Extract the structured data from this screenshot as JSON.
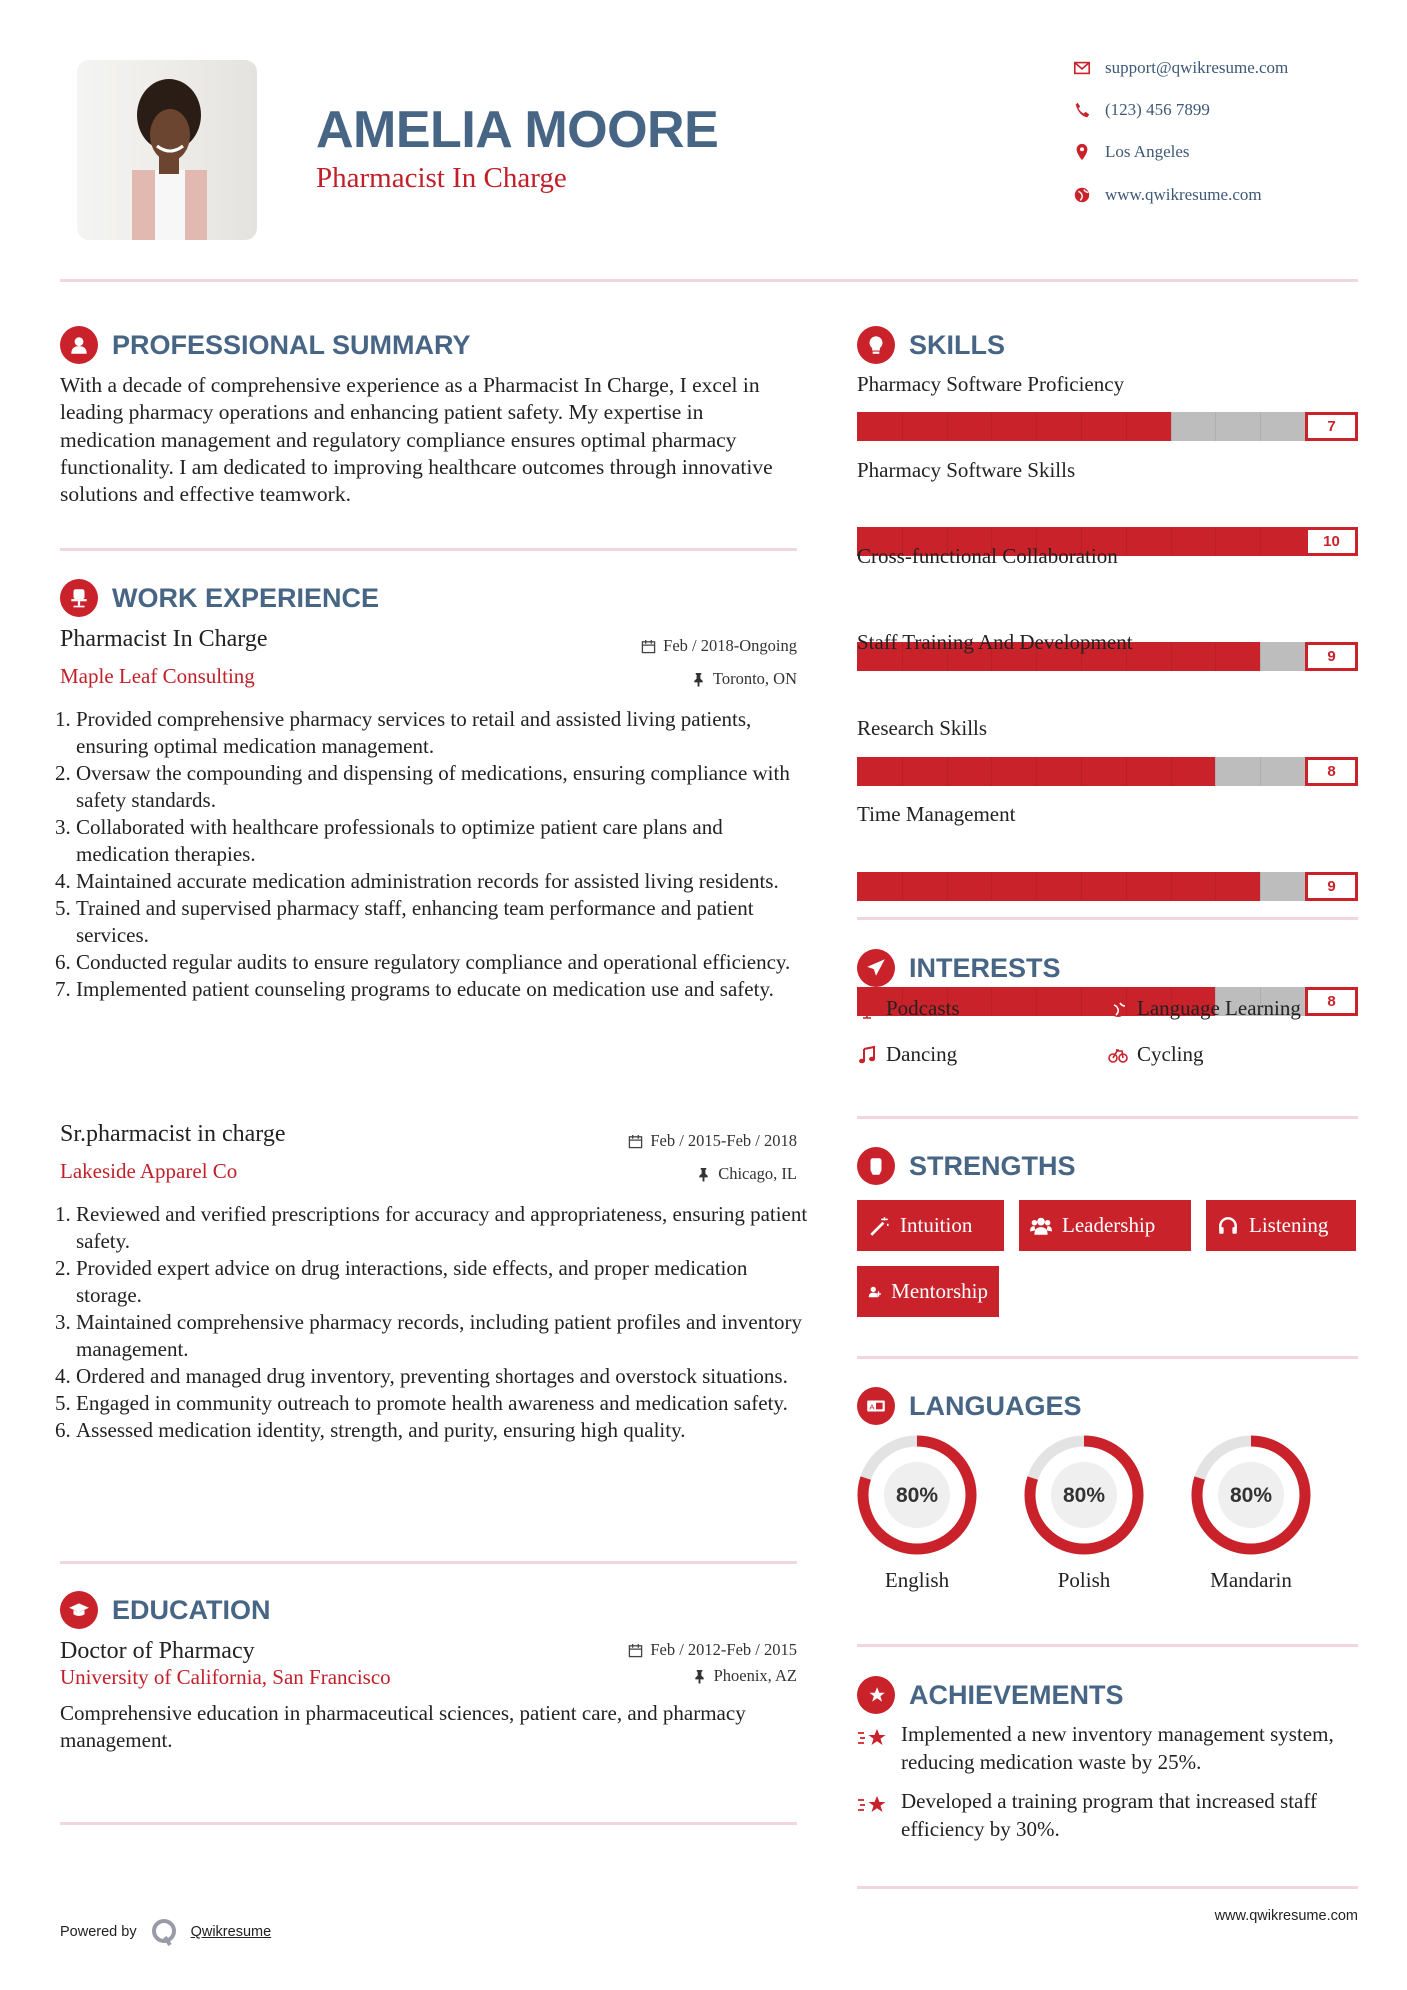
{
  "header": {
    "name": "AMELIA MOORE",
    "title": "Pharmacist In Charge",
    "contacts": [
      {
        "icon": "envelope-icon",
        "text": "support@qwikresume.com"
      },
      {
        "icon": "phone-icon",
        "text": "(123) 456 7899"
      },
      {
        "icon": "map-pin-icon",
        "text": "Los Angeles"
      },
      {
        "icon": "globe-icon",
        "text": "www.qwikresume.com"
      }
    ]
  },
  "colors": {
    "accent": "#c9222b",
    "heading": "#476584",
    "divider": "#f1d6de",
    "track": "#bdbdbd"
  },
  "summary": {
    "heading": "PROFESSIONAL SUMMARY",
    "text": "With a decade of comprehensive experience as a Pharmacist In Charge, I excel in leading pharmacy operations and enhancing patient safety. My expertise in medication management and regulatory compliance ensures optimal pharmacy functionality. I am dedicated to improving healthcare outcomes through innovative solutions and effective teamwork."
  },
  "experience": {
    "heading": "WORK EXPERIENCE",
    "jobs": [
      {
        "title": "Pharmacist In Charge",
        "company": "Maple Leaf Consulting",
        "dates": "Feb / 2018-Ongoing",
        "location": "Toronto, ON",
        "bullets": [
          "Provided comprehensive pharmacy services to retail and assisted living patients, ensuring optimal medication management.",
          "Oversaw the compounding and dispensing of medications, ensuring compliance with safety standards.",
          "Collaborated with healthcare professionals to optimize patient care plans and medication therapies.",
          "Maintained accurate medication administration records for assisted living residents.",
          "Trained and supervised pharmacy staff, enhancing team performance and patient services.",
          "Conducted regular audits to ensure regulatory compliance and operational efficiency.",
          "Implemented patient counseling programs to educate on medication use and safety."
        ]
      },
      {
        "title": "Sr.pharmacist in charge",
        "company": "Lakeside Apparel Co",
        "dates": "Feb / 2015-Feb / 2018",
        "location": "Chicago, IL",
        "bullets": [
          "Reviewed and verified prescriptions for accuracy and appropriateness, ensuring patient safety.",
          "Provided expert advice on drug interactions, side effects, and proper medication storage.",
          "Maintained comprehensive pharmacy records, including patient profiles and inventory management.",
          "Ordered and managed drug inventory, preventing shortages and overstock situations.",
          "Engaged in community outreach to promote health awareness and medication safety.",
          "Assessed medication identity, strength, and purity, ensuring high quality."
        ]
      }
    ]
  },
  "education": {
    "heading": "EDUCATION",
    "degree": "Doctor of Pharmacy",
    "school": "University of California, San Francisco",
    "dates": "Feb / 2012-Feb / 2015",
    "location": "Phoenix, AZ",
    "description": "Comprehensive education in pharmaceutical sciences, patient care, and pharmacy management."
  },
  "skills": {
    "heading": "SKILLS",
    "max": 10,
    "items": [
      {
        "name": "Pharmacy Software Proficiency",
        "level": 7
      },
      {
        "name": "Pharmacy Software Skills",
        "level": 10
      },
      {
        "name": "Cross-functional Collaboration",
        "level": 9
      },
      {
        "name": "Staff Training And Development",
        "level": 8
      },
      {
        "name": "Research Skills",
        "level": 9
      },
      {
        "name": "Time Management",
        "level": 8
      }
    ]
  },
  "interests": {
    "heading": "INTERESTS",
    "items": [
      {
        "icon": "microphone-icon",
        "label": "Podcasts"
      },
      {
        "icon": "globe-icon",
        "label": "Language Learning"
      },
      {
        "icon": "music-note-icon",
        "label": "Dancing"
      },
      {
        "icon": "bicycle-icon",
        "label": "Cycling"
      }
    ]
  },
  "strengths": {
    "heading": "STRENGTHS",
    "items": [
      {
        "icon": "magic-wand-icon",
        "label": "Intuition"
      },
      {
        "icon": "users-icon",
        "label": "Leadership"
      },
      {
        "icon": "headphones-icon",
        "label": "Listening"
      },
      {
        "icon": "user-plus-icon",
        "label": "Mentorship"
      }
    ]
  },
  "languages": {
    "heading": "LANGUAGES",
    "items": [
      {
        "name": "English",
        "percent": 80,
        "label": "80%"
      },
      {
        "name": "Polish",
        "percent": 80,
        "label": "80%"
      },
      {
        "name": "Mandarin",
        "percent": 80,
        "label": "80%"
      }
    ]
  },
  "achievements": {
    "heading": "ACHIEVEMENTS",
    "items": [
      "Implemented a new inventory management system, reducing medication waste by 25%.",
      "Developed a training program that increased staff efficiency by 30%."
    ]
  },
  "footer": {
    "powered_by": "Powered by",
    "brand": "Qwikresume",
    "website": "www.qwikresume.com"
  }
}
